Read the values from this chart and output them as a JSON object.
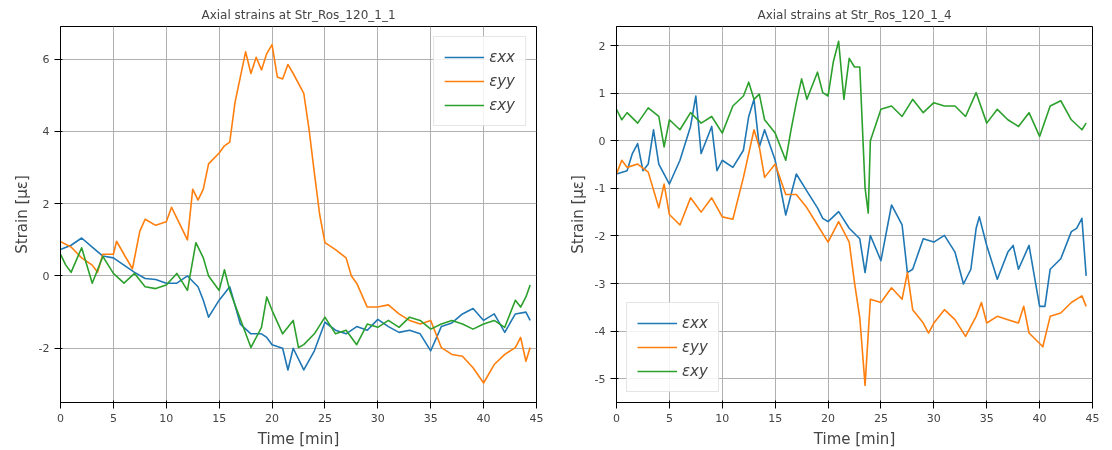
{
  "chart_data": [
    {
      "type": "line",
      "title": "Axial strains at Str_Ros_120_1_1",
      "xlabel": "Time [min]",
      "ylabel": "Strain [με]",
      "xlim": [
        0,
        45
      ],
      "ylim": [
        -3.5,
        6.9
      ],
      "xticks": [
        0,
        5,
        10,
        15,
        20,
        25,
        30,
        35,
        40,
        45
      ],
      "yticks": [
        -2,
        0,
        2,
        4,
        6
      ],
      "grid": true,
      "legend": "top right",
      "series": [
        {
          "name": "εxx",
          "color": "#1f77b4",
          "x": [
            0,
            1,
            2,
            3,
            4,
            5,
            6,
            7,
            8,
            9,
            10,
            11,
            12,
            13,
            13.5,
            14,
            15,
            16,
            17,
            18,
            19,
            19.5,
            20,
            21,
            21.5,
            22,
            23,
            24,
            25,
            26,
            27,
            28,
            29,
            30,
            31,
            32,
            33,
            34,
            35,
            36,
            37,
            38,
            39,
            40,
            41,
            42,
            43,
            44,
            44.4
          ],
          "values": [
            0.73,
            0.85,
            1.05,
            0.8,
            0.55,
            0.5,
            0.3,
            0.1,
            -0.07,
            -0.1,
            -0.2,
            -0.2,
            0,
            -0.3,
            -0.67,
            -1.14,
            -0.67,
            -0.3,
            -1.33,
            -1.6,
            -1.6,
            -1.7,
            -1.9,
            -2.0,
            -2.6,
            -2.0,
            -2.6,
            -2.07,
            -1.28,
            -1.5,
            -1.6,
            -1.4,
            -1.5,
            -1.2,
            -1.4,
            -1.56,
            -1.5,
            -1.6,
            -2.07,
            -1.4,
            -1.3,
            -1.05,
            -0.9,
            -1.23,
            -1.05,
            -1.56,
            -1.05,
            -1.0,
            -1.23
          ]
        },
        {
          "name": "εyy",
          "color": "#ff7f0e",
          "x": [
            0,
            1,
            2,
            3,
            3.5,
            4,
            5,
            5.3,
            6,
            6.8,
            7.5,
            8,
            9,
            10,
            10.5,
            11,
            12,
            12.5,
            13,
            13.5,
            14,
            15,
            15.5,
            16,
            16.5,
            17,
            17.5,
            18,
            18.5,
            19,
            19.5,
            20,
            20.5,
            21,
            21.5,
            22,
            23,
            23.5,
            24,
            24.5,
            25,
            26,
            27,
            27.5,
            28,
            29,
            30,
            31,
            32,
            33,
            34,
            35,
            36,
            37,
            38,
            39,
            40,
            41,
            42,
            43,
            43.5,
            44,
            44.4
          ],
          "values": [
            0.95,
            0.8,
            0.5,
            0.3,
            0.1,
            0.6,
            0.6,
            0.96,
            0.6,
            0.2,
            1.24,
            1.57,
            1.4,
            1.5,
            1.9,
            1.6,
            1.0,
            2.4,
            2.1,
            2.4,
            3.1,
            3.4,
            3.6,
            3.7,
            4.8,
            5.5,
            6.2,
            5.6,
            6.05,
            5.7,
            6.15,
            6.4,
            5.5,
            5.45,
            5.85,
            5.6,
            5.05,
            4.05,
            2.85,
            1.7,
            0.92,
            0.73,
            0.5,
            0,
            -0.2,
            -0.86,
            -0.86,
            -0.8,
            -1.05,
            -1.23,
            -1.33,
            -1.23,
            -1.98,
            -2.17,
            -2.22,
            -2.54,
            -2.96,
            -2.45,
            -2.17,
            -1.98,
            -1.7,
            -2.36,
            -1.98
          ]
        },
        {
          "name": "εxy",
          "color": "#2ca02c",
          "x": [
            0,
            0.5,
            1,
            2,
            3,
            4,
            5,
            6,
            7,
            8,
            9,
            10,
            11,
            12,
            12.8,
            13.5,
            14,
            15,
            15.5,
            16,
            17,
            18,
            19,
            19.5,
            20,
            21,
            22,
            22.5,
            23,
            24,
            25,
            26,
            27,
            28,
            29,
            30,
            31,
            32,
            33,
            34,
            35,
            36,
            37,
            38,
            39,
            40,
            41,
            42,
            43,
            43.5,
            44,
            44.4
          ],
          "values": [
            0.6,
            0.3,
            0.1,
            0.78,
            -0.2,
            0.54,
            0.07,
            -0.2,
            0.07,
            -0.3,
            -0.35,
            -0.25,
            0.07,
            -0.4,
            0.92,
            0.5,
            0,
            -0.4,
            0.17,
            -0.4,
            -1.19,
            -1.98,
            -1.42,
            -0.58,
            -0.95,
            -1.6,
            -1.23,
            -1.98,
            -1.9,
            -1.6,
            -1.14,
            -1.6,
            -1.5,
            -1.9,
            -1.33,
            -1.42,
            -1.23,
            -1.42,
            -1.14,
            -1.23,
            -1.47,
            -1.33,
            -1.23,
            -1.33,
            -1.47,
            -1.33,
            -1.23,
            -1.42,
            -0.67,
            -0.86,
            -0.58,
            -0.25
          ]
        }
      ]
    },
    {
      "type": "line",
      "title": "Axial strains at Str_Ros_120_1_4",
      "xlabel": "Time [min]",
      "ylabel": "Strain [με]",
      "xlim": [
        0,
        45
      ],
      "ylim": [
        -5.5,
        2.4
      ],
      "xticks": [
        0,
        5,
        10,
        15,
        20,
        25,
        30,
        35,
        40,
        45
      ],
      "yticks": [
        -5,
        -4,
        -3,
        -2,
        -1,
        0,
        1,
        2
      ],
      "grid": true,
      "legend": "bottom left",
      "series": [
        {
          "name": "εxx",
          "color": "#1f77b4",
          "x": [
            0,
            1,
            1.5,
            2,
            2.5,
            3,
            3.5,
            4,
            5,
            6,
            7,
            7.5,
            8,
            9,
            9.5,
            10,
            11,
            12,
            12.5,
            13,
            13.5,
            14,
            15,
            16,
            17,
            18,
            19,
            19.5,
            20,
            21,
            22,
            23,
            23.5,
            24,
            25,
            26,
            27,
            27.5,
            28,
            29,
            30,
            31,
            32,
            32.8,
            33.5,
            34,
            34.3,
            35,
            36,
            37,
            37.5,
            38,
            39,
            40,
            40.5,
            41,
            42,
            43,
            43.5,
            44,
            44.4
          ],
          "values": [
            -0.7,
            -0.63,
            -0.27,
            -0.06,
            -0.63,
            -0.49,
            0.23,
            -0.49,
            -0.91,
            -0.41,
            0.3,
            0.94,
            -0.27,
            0.3,
            -0.63,
            -0.41,
            -0.56,
            -0.2,
            0.51,
            0.87,
            -0.13,
            0.23,
            -0.41,
            -1.56,
            -0.7,
            -1.06,
            -1.41,
            -1.63,
            -1.7,
            -1.49,
            -1.84,
            -2.06,
            -2.77,
            -1.99,
            -2.52,
            -1.35,
            -1.77,
            -2.77,
            -2.7,
            -2.06,
            -2.13,
            -1.99,
            -2.34,
            -3.01,
            -2.7,
            -1.84,
            -1.6,
            -2.2,
            -2.91,
            -2.34,
            -2.2,
            -2.7,
            -2.2,
            -3.48,
            -3.48,
            -2.7,
            -2.48,
            -1.91,
            -1.84,
            -1.63,
            -2.84
          ]
        },
        {
          "name": "εyy",
          "color": "#ff7f0e",
          "x": [
            0,
            0.5,
            1,
            2,
            3,
            4,
            4.5,
            5,
            6,
            7,
            8,
            9,
            10,
            11,
            12,
            13,
            13.5,
            14,
            15,
            16,
            17,
            18,
            19,
            20,
            21,
            22,
            22.5,
            23,
            23.5,
            24,
            25,
            26,
            27,
            27.5,
            28,
            29,
            29.5,
            30,
            31,
            32,
            33,
            34,
            34.5,
            35,
            36,
            37,
            38,
            38.5,
            39,
            40,
            40.3,
            41,
            42,
            43,
            44,
            44.4
          ],
          "values": [
            -0.7,
            -0.41,
            -0.56,
            -0.49,
            -0.66,
            -1.41,
            -0.91,
            -1.55,
            -1.77,
            -1.2,
            -1.5,
            -1.2,
            -1.6,
            -1.65,
            -0.77,
            0.23,
            -0.13,
            -0.77,
            -0.49,
            -1.13,
            -1.13,
            -1.41,
            -1.77,
            -2.13,
            -1.7,
            -2.13,
            -2.98,
            -3.72,
            -5.14,
            -3.33,
            -3.4,
            -3.09,
            -3.33,
            -2.77,
            -3.55,
            -3.83,
            -4.04,
            -3.83,
            -3.55,
            -3.76,
            -4.11,
            -3.69,
            -3.4,
            -3.83,
            -3.69,
            -3.76,
            -3.83,
            -3.48,
            -4.04,
            -4.26,
            -4.33,
            -3.69,
            -3.62,
            -3.4,
            -3.26,
            -3.48
          ]
        },
        {
          "name": "εxy",
          "color": "#2ca02c",
          "x": [
            0,
            0.5,
            1,
            2,
            3,
            4,
            4.5,
            5,
            6,
            7,
            8,
            9,
            10,
            11,
            12,
            12.5,
            13,
            13.5,
            14,
            15,
            16,
            16.5,
            17,
            17.5,
            18,
            19,
            19.5,
            20,
            20.5,
            21,
            21.5,
            22,
            22.5,
            23,
            23.5,
            23.8,
            24,
            25,
            26,
            27,
            28,
            29,
            30,
            31,
            32,
            33,
            34,
            35,
            36,
            37,
            38,
            39,
            40,
            41,
            42,
            43,
            44,
            44.4
          ],
          "values": [
            0.66,
            0.44,
            0.59,
            0.37,
            0.69,
            0.51,
            -0.13,
            0.44,
            0.23,
            0.59,
            0.37,
            0.51,
            0.16,
            0.73,
            0.94,
            1.23,
            0.87,
            0.98,
            0.44,
            0.16,
            -0.41,
            0.23,
            0.8,
            1.3,
            0.87,
            1.44,
            1.01,
            0.94,
            1.66,
            2.09,
            0.87,
            1.73,
            1.55,
            1.55,
            -0.99,
            -1.52,
            0,
            0.66,
            0.73,
            0.51,
            0.87,
            0.59,
            0.8,
            0.73,
            0.73,
            0.51,
            1.01,
            0.37,
            0.66,
            0.44,
            0.3,
            0.59,
            0.09,
            0.73,
            0.84,
            0.44,
            0.23,
            0.37
          ]
        }
      ]
    }
  ]
}
